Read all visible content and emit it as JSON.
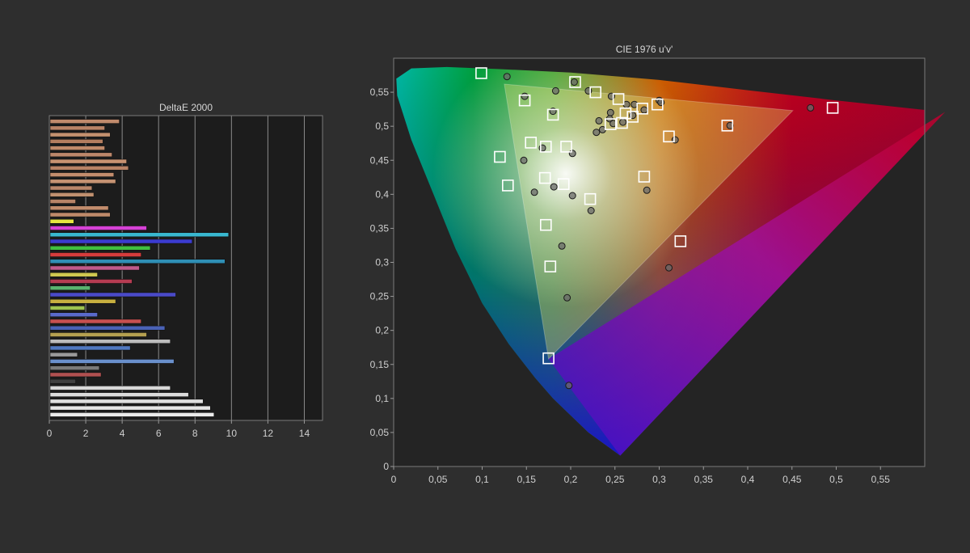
{
  "chart_data": [
    {
      "type": "bar",
      "orientation": "horizontal",
      "title": "DeltaE 2000",
      "xlim": [
        0,
        15
      ],
      "xticks": [
        "0",
        "2",
        "4",
        "6",
        "8",
        "10",
        "12",
        "14"
      ],
      "grid": "vertical",
      "bars": [
        {
          "value": 3.8,
          "color": "#c08a6c"
        },
        {
          "value": 3.0,
          "color": "#b98366"
        },
        {
          "value": 3.3,
          "color": "#c4916f"
        },
        {
          "value": 2.9,
          "color": "#b37d5f"
        },
        {
          "value": 3.0,
          "color": "#c08a6a"
        },
        {
          "value": 3.4,
          "color": "#bd876a"
        },
        {
          "value": 4.2,
          "color": "#c89271"
        },
        {
          "value": 4.3,
          "color": "#b88265"
        },
        {
          "value": 3.5,
          "color": "#c38d6d"
        },
        {
          "value": 3.6,
          "color": "#c69373"
        },
        {
          "value": 2.3,
          "color": "#b9866a"
        },
        {
          "value": 2.4,
          "color": "#c0906f"
        },
        {
          "value": 1.4,
          "color": "#b78367"
        },
        {
          "value": 3.2,
          "color": "#c18c6c"
        },
        {
          "value": 3.3,
          "color": "#bf8a6a"
        },
        {
          "value": 1.3,
          "color": "#e6e640"
        },
        {
          "value": 5.3,
          "color": "#d641d6"
        },
        {
          "value": 9.8,
          "color": "#39b8d0"
        },
        {
          "value": 7.8,
          "color": "#3b3bd0"
        },
        {
          "value": 5.5,
          "color": "#40c040"
        },
        {
          "value": 5.0,
          "color": "#d63c3c"
        },
        {
          "value": 9.6,
          "color": "#2f8fb5"
        },
        {
          "value": 4.9,
          "color": "#c05a8c"
        },
        {
          "value": 2.6,
          "color": "#d0c850"
        },
        {
          "value": 4.5,
          "color": "#b53c52"
        },
        {
          "value": 2.2,
          "color": "#5ab36e"
        },
        {
          "value": 6.9,
          "color": "#4a4ac8"
        },
        {
          "value": 3.6,
          "color": "#c8b040"
        },
        {
          "value": 1.9,
          "color": "#9ec450"
        },
        {
          "value": 2.6,
          "color": "#5a6acb"
        },
        {
          "value": 5.0,
          "color": "#c85050"
        },
        {
          "value": 6.3,
          "color": "#4a62b6"
        },
        {
          "value": 5.3,
          "color": "#b5a050"
        },
        {
          "value": 6.6,
          "color": "#bcbcbc"
        },
        {
          "value": 4.4,
          "color": "#5078c0"
        },
        {
          "value": 1.5,
          "color": "#9a9a9a"
        },
        {
          "value": 6.8,
          "color": "#6a90cc"
        },
        {
          "value": 2.7,
          "color": "#7a7a7a"
        },
        {
          "value": 2.8,
          "color": "#b05050"
        },
        {
          "value": 1.4,
          "color": "#404040"
        },
        {
          "value": 6.6,
          "color": "#d8d8d8"
        },
        {
          "value": 7.6,
          "color": "#dcdcdc"
        },
        {
          "value": 8.4,
          "color": "#e0e0e0"
        },
        {
          "value": 8.8,
          "color": "#e6e6e6"
        },
        {
          "value": 9.0,
          "color": "#ececec"
        }
      ]
    },
    {
      "type": "scatter",
      "title": "CIE 1976 u'v'",
      "xlim": [
        0,
        0.6
      ],
      "ylim": [
        0,
        0.6
      ],
      "xticks": [
        "0",
        "0,05",
        "0,1",
        "0,15",
        "0,2",
        "0,25",
        "0,3",
        "0,35",
        "0,4",
        "0,45",
        "0,5",
        "0,55"
      ],
      "yticks": [
        "0",
        "0,05",
        "0,1",
        "0,15",
        "0,2",
        "0,25",
        "0,3",
        "0,35",
        "0,4",
        "0,45",
        "0,5",
        "0,55"
      ],
      "gamut_triangle": [
        [
          0.451,
          0.523
        ],
        [
          0.125,
          0.562
        ],
        [
          0.175,
          0.158
        ]
      ],
      "series": [
        {
          "marker": "square",
          "points": [
            [
              0.099,
              0.578
            ],
            [
              0.205,
              0.565
            ],
            [
              0.496,
              0.527
            ],
            [
              0.172,
              0.47
            ],
            [
              0.12,
              0.455
            ],
            [
              0.129,
              0.413
            ],
            [
              0.171,
              0.424
            ],
            [
              0.192,
              0.415
            ],
            [
              0.222,
              0.393
            ],
            [
              0.283,
              0.426
            ],
            [
              0.172,
              0.355
            ],
            [
              0.324,
              0.331
            ],
            [
              0.177,
              0.294
            ],
            [
              0.175,
              0.159
            ],
            [
              0.377,
              0.501
            ],
            [
              0.311,
              0.485
            ],
            [
              0.148,
              0.538
            ],
            [
              0.18,
              0.517
            ],
            [
              0.228,
              0.55
            ],
            [
              0.254,
              0.54
            ],
            [
              0.281,
              0.526
            ],
            [
              0.298,
              0.532
            ],
            [
              0.262,
              0.519
            ],
            [
              0.245,
              0.503
            ],
            [
              0.258,
              0.505
            ],
            [
              0.27,
              0.514
            ],
            [
              0.155,
              0.476
            ],
            [
              0.195,
              0.47
            ]
          ]
        },
        {
          "marker": "circle",
          "points": [
            [
              0.128,
              0.573
            ],
            [
              0.204,
              0.565
            ],
            [
              0.148,
              0.544
            ],
            [
              0.183,
              0.552
            ],
            [
              0.22,
              0.552
            ],
            [
              0.246,
              0.544
            ],
            [
              0.3,
              0.538
            ],
            [
              0.302,
              0.535
            ],
            [
              0.263,
              0.532
            ],
            [
              0.272,
              0.532
            ],
            [
              0.283,
              0.524
            ],
            [
              0.18,
              0.522
            ],
            [
              0.245,
              0.52
            ],
            [
              0.27,
              0.516
            ],
            [
              0.232,
              0.508
            ],
            [
              0.244,
              0.511
            ],
            [
              0.248,
              0.504
            ],
            [
              0.259,
              0.506
            ],
            [
              0.236,
              0.495
            ],
            [
              0.229,
              0.491
            ],
            [
              0.168,
              0.468
            ],
            [
              0.147,
              0.45
            ],
            [
              0.202,
              0.46
            ],
            [
              0.318,
              0.48
            ],
            [
              0.38,
              0.501
            ],
            [
              0.471,
              0.527
            ],
            [
              0.181,
              0.411
            ],
            [
              0.202,
              0.398
            ],
            [
              0.223,
              0.376
            ],
            [
              0.159,
              0.403
            ],
            [
              0.286,
              0.406
            ],
            [
              0.19,
              0.324
            ],
            [
              0.196,
              0.248
            ],
            [
              0.311,
              0.292
            ],
            [
              0.198,
              0.119
            ]
          ]
        }
      ]
    }
  ]
}
